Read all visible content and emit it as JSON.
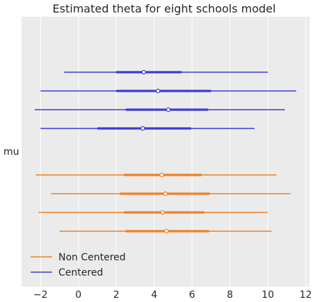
{
  "chart_data": {
    "type": "forest",
    "title": "Estimated theta for eight schools model",
    "ylabel": "mu",
    "xlim": [
      -3.0,
      12.2
    ],
    "x_ticks": [
      -2,
      0,
      2,
      4,
      6,
      8,
      10,
      12
    ],
    "x_tick_labels": [
      "−2",
      "0",
      "2",
      "4",
      "6",
      "8",
      "10",
      "12"
    ],
    "grid": true,
    "legend_position": "bottom-left",
    "series": [
      {
        "name": "Centered",
        "color": "#3b3bd6",
        "chains": [
          {
            "low": -0.75,
            "hdi_low": 2.0,
            "median": 3.45,
            "hdi_high": 5.45,
            "high": 10.0
          },
          {
            "low": -2.0,
            "hdi_low": 2.0,
            "median": 4.2,
            "hdi_high": 7.0,
            "high": 11.5
          },
          {
            "low": -2.3,
            "hdi_low": 2.5,
            "median": 4.75,
            "hdi_high": 6.85,
            "high": 10.9
          },
          {
            "low": -2.0,
            "hdi_low": 1.0,
            "median": 3.4,
            "hdi_high": 5.95,
            "high": 9.3
          }
        ]
      },
      {
        "name": "Non Centered",
        "color": "#f07f22",
        "chains": [
          {
            "low": -2.25,
            "hdi_low": 2.4,
            "median": 4.4,
            "hdi_high": 6.5,
            "high": 10.45
          },
          {
            "low": -1.45,
            "hdi_low": 2.2,
            "median": 4.6,
            "hdi_high": 6.95,
            "high": 11.2
          },
          {
            "low": -2.1,
            "hdi_low": 2.4,
            "median": 4.45,
            "hdi_high": 6.65,
            "high": 10.0
          },
          {
            "low": -1.0,
            "hdi_low": 2.5,
            "median": 4.65,
            "hdi_high": 6.9,
            "high": 10.2
          }
        ]
      }
    ],
    "legend": [
      {
        "label": "Non Centered",
        "color": "#f07f22"
      },
      {
        "label": "Centered",
        "color": "#3b3bd6"
      }
    ]
  }
}
